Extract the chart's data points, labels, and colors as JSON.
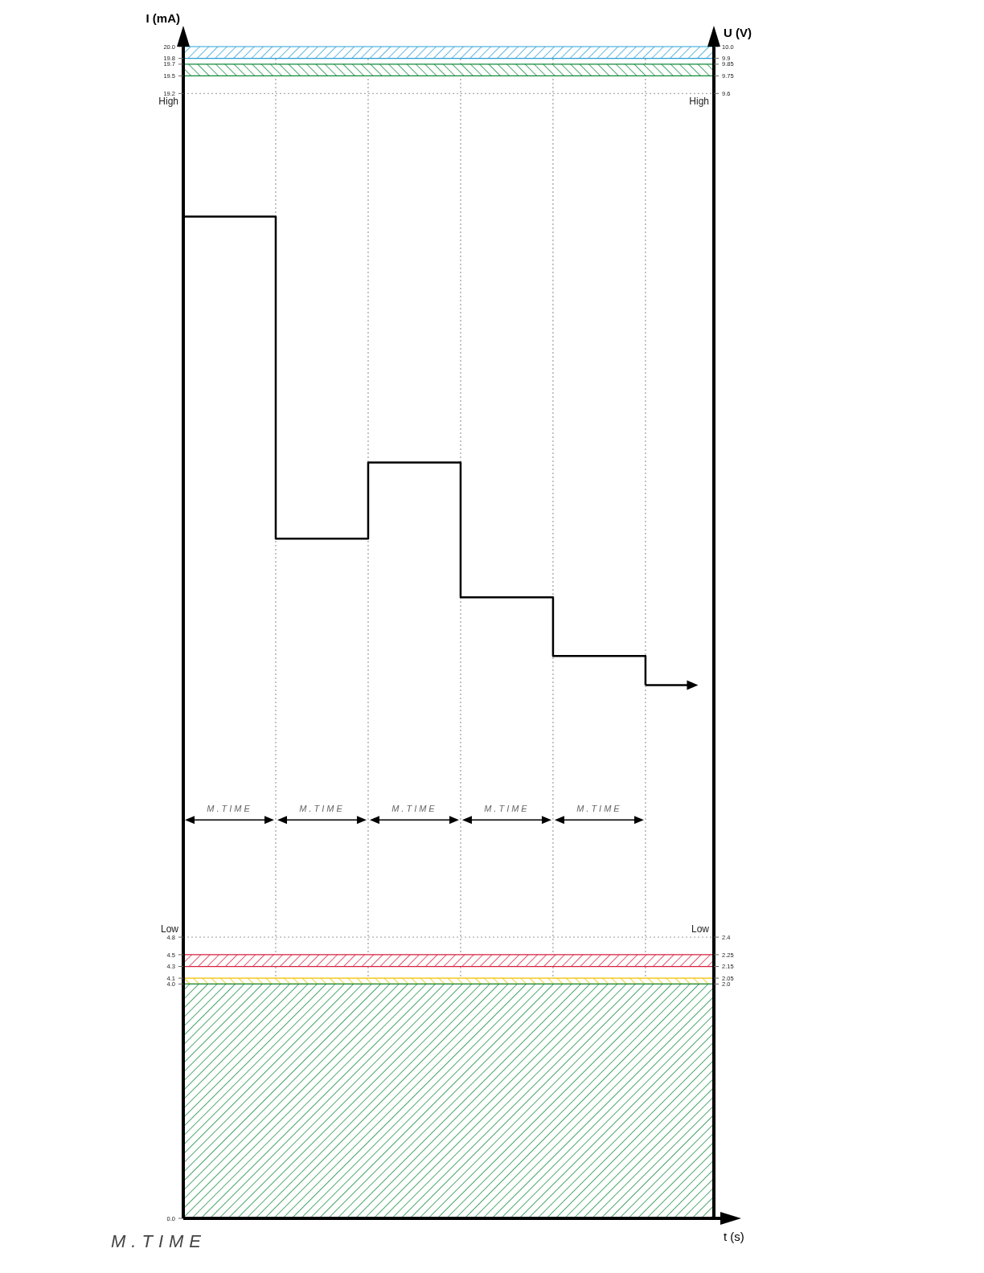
{
  "chart_data": {
    "type": "step",
    "xlabel": "t (s)",
    "ylabel": "I (mA)",
    "y2label": "U (V)",
    "categories": [
      null,
      null,
      null,
      null,
      null,
      null
    ],
    "series": [
      {
        "color": "#000000",
        "values": [
          17.1,
          11.6,
          12.9,
          10.6,
          9.6,
          9.1
        ]
      }
    ],
    "ylim": [
      0,
      20
    ],
    "yticks": [
      {
        "value": 0,
        "label": "0.0"
      },
      {
        "value": 4,
        "label": "4.0"
      },
      4.1,
      4.3,
      4.5,
      4.8,
      19.2,
      19.5,
      19.7,
      19.8,
      {
        "value": 20,
        "label": "20.0"
      }
    ],
    "y2lim": [
      0,
      10
    ],
    "y2ticks": [
      {
        "value": 2,
        "label": "2.0"
      },
      2.05,
      2.15,
      2.25,
      2.4,
      9.6,
      9.75,
      9.85,
      9.9,
      {
        "value": 10,
        "label": "10.0"
      }
    ],
    "ref_lines": [
      {
        "axis": "y",
        "value": 19.2,
        "label": "High",
        "color": "#999999",
        "line_style": "dotted"
      },
      {
        "axis": "y",
        "value": 4.8,
        "label": "Low",
        "color": "#999999",
        "line_style": "dotted"
      }
    ],
    "bands": [
      {
        "axis": "y",
        "from": 19.8,
        "to": 20,
        "color": "#2a9fd6"
      },
      {
        "axis": "y",
        "from": 19.5,
        "to": 19.7,
        "color": "#128a3c"
      },
      {
        "axis": "y",
        "from": 4.3,
        "to": 4.5,
        "color": "#d81e3c"
      },
      {
        "axis": "y",
        "from": 4.0,
        "to": 4.1,
        "color": "#f0c000"
      },
      {
        "axis": "y",
        "from": 0,
        "to": 4.0,
        "color": "#128a3c"
      }
    ],
    "grid": "x",
    "line_style": "solid",
    "marker": "none",
    "annotations": [
      "M.TIME",
      "M.TIME",
      "M.TIME",
      "M.TIME",
      "M.TIME",
      "M.TIME"
    ]
  }
}
